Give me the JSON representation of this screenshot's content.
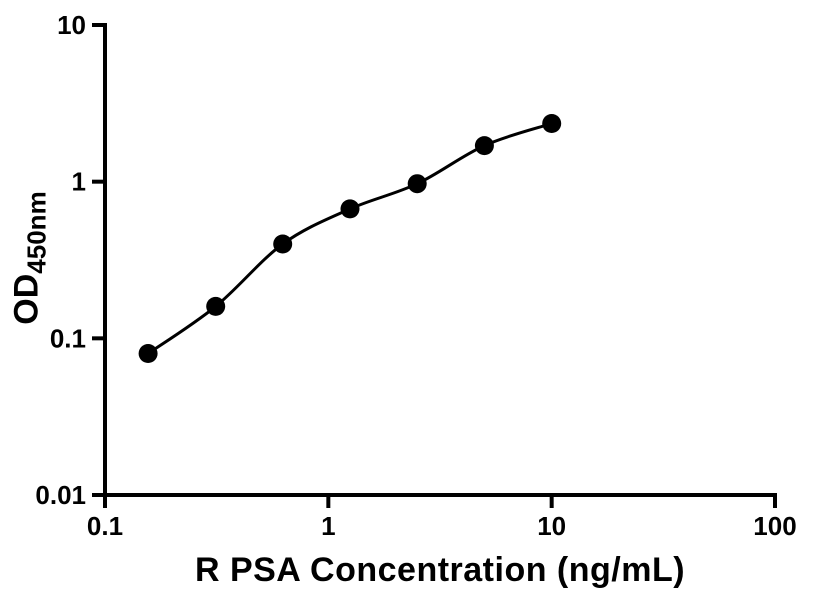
{
  "figure": {
    "background": "#ffffff",
    "ink_color": "#000000"
  },
  "chart_data": {
    "type": "scatter",
    "title": "",
    "xlabel": "R PSA Concentration (ng/mL)",
    "ylabel": "OD450nm",
    "ylabel_main": "OD",
    "ylabel_sub": "450nm",
    "x_scale": "log10",
    "y_scale": "log10",
    "xlim": [
      0.1,
      100
    ],
    "ylim": [
      0.01,
      10
    ],
    "grid": false,
    "legend": "none",
    "x_ticks": [
      {
        "value": 0.1,
        "label": "0.1"
      },
      {
        "value": 1,
        "label": "1"
      },
      {
        "value": 10,
        "label": "10"
      },
      {
        "value": 100,
        "label": "100"
      }
    ],
    "y_ticks": [
      {
        "value": 0.01,
        "label": "0.01"
      },
      {
        "value": 0.1,
        "label": "0.1"
      },
      {
        "value": 1,
        "label": "1"
      },
      {
        "value": 10,
        "label": "10"
      }
    ],
    "series": [
      {
        "marker": "filled-circle",
        "color": "#000000",
        "curve": "smooth-fit",
        "points": [
          {
            "x": 0.156,
            "y": 0.08
          },
          {
            "x": 0.313,
            "y": 0.16
          },
          {
            "x": 0.625,
            "y": 0.4
          },
          {
            "x": 1.25,
            "y": 0.67
          },
          {
            "x": 2.5,
            "y": 0.97
          },
          {
            "x": 5,
            "y": 1.7
          },
          {
            "x": 10,
            "y": 2.35
          }
        ]
      }
    ]
  }
}
